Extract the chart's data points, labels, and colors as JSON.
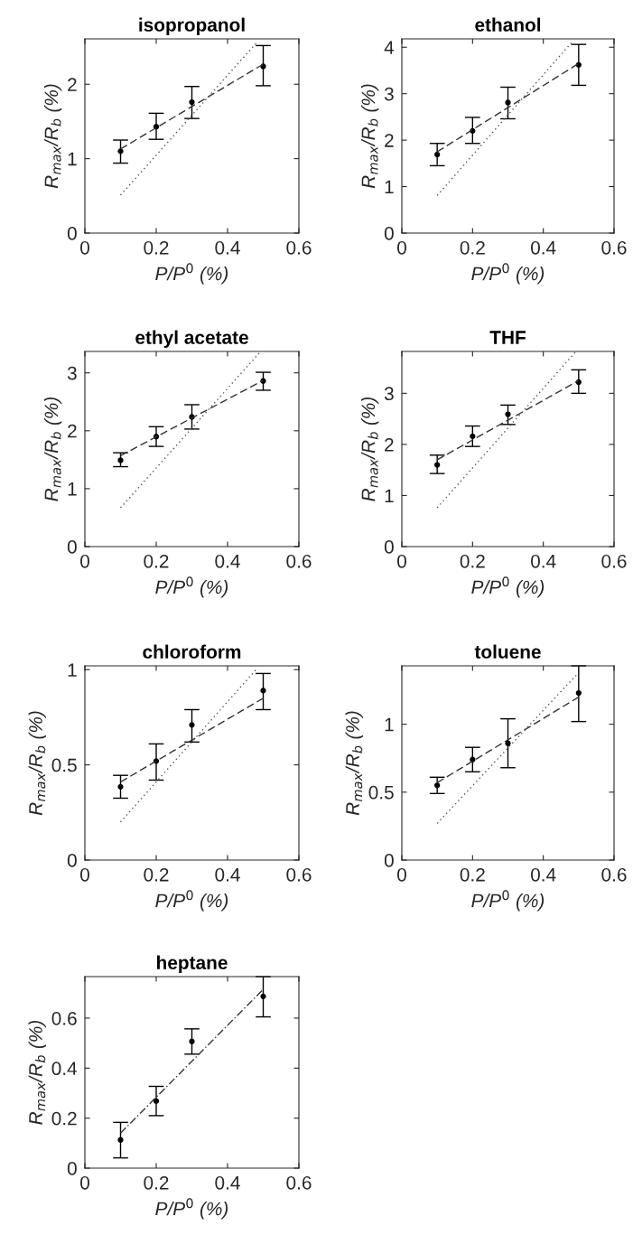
{
  "chart_data": [
    {
      "type": "scatter",
      "title": "isopropanol",
      "xlabel": "P/P$^{0}$ (%)",
      "ylabel": "R$_{max}$/R$_{b}$ (%)",
      "xlim": [
        0,
        0.6
      ],
      "xticks": [
        0,
        0.2,
        0.4,
        0.6
      ],
      "ylim": [
        0,
        2.61
      ],
      "yticks": [
        0,
        1,
        2
      ],
      "grid": false,
      "legend": false,
      "series": [
        {
          "color": "#000000",
          "marker": "circle",
          "x": [
            0.1,
            0.2,
            0.3,
            0.5
          ],
          "values": [
            1.1,
            1.43,
            1.76,
            2.24
          ],
          "errors": [
            [
              0.94,
              1.25
            ],
            [
              1.26,
              1.61
            ],
            [
              1.54,
              1.97
            ],
            [
              1.98,
              2.52
            ]
          ]
        },
        {
          "type": "line",
          "color": "#333333",
          "line_style": "dashed",
          "x": [
            0.1,
            0.5
          ],
          "values": [
            1.13,
            2.27
          ]
        },
        {
          "type": "line",
          "color": "#555555",
          "line_style": "dotted",
          "x": [
            0.1,
            0.48
          ],
          "values": [
            0.51,
            2.55
          ]
        }
      ]
    },
    {
      "type": "scatter",
      "title": "ethanol",
      "xlabel": "P/P$^{0}$ (%)",
      "ylabel": "R$_{max}$/R$_{b}$ (%)",
      "xlim": [
        0,
        0.6
      ],
      "xticks": [
        0,
        0.2,
        0.4,
        0.6
      ],
      "ylim": [
        0,
        4.18
      ],
      "yticks": [
        0,
        1,
        2,
        3,
        4
      ],
      "grid": false,
      "legend": false,
      "series": [
        {
          "color": "#000000",
          "marker": "circle",
          "x": [
            0.1,
            0.2,
            0.3,
            0.5
          ],
          "values": [
            1.69,
            2.2,
            2.81,
            3.62
          ],
          "errors": [
            [
              1.45,
              1.93
            ],
            [
              1.93,
              2.49
            ],
            [
              2.46,
              3.14
            ],
            [
              3.18,
              4.06
            ]
          ]
        },
        {
          "type": "line",
          "color": "#333333",
          "line_style": "dashed",
          "x": [
            0.1,
            0.5
          ],
          "values": [
            1.75,
            3.65
          ]
        },
        {
          "type": "line",
          "color": "#555555",
          "line_style": "dotted",
          "x": [
            0.1,
            0.48
          ],
          "values": [
            0.81,
            4.1
          ]
        }
      ]
    },
    {
      "type": "scatter",
      "title": "ethyl acetate",
      "xlabel": "P/P$^{0}$ (%)",
      "ylabel": "R$_{max}$/R$_{b}$ (%)",
      "xlim": [
        0,
        0.6
      ],
      "xticks": [
        0,
        0.2,
        0.4,
        0.6
      ],
      "ylim": [
        0,
        3.37
      ],
      "yticks": [
        0,
        1,
        2,
        3
      ],
      "grid": false,
      "legend": false,
      "series": [
        {
          "color": "#000000",
          "marker": "circle",
          "x": [
            0.1,
            0.2,
            0.3,
            0.5
          ],
          "values": [
            1.49,
            1.9,
            2.24,
            2.86
          ],
          "errors": [
            [
              1.38,
              1.62
            ],
            [
              1.73,
              2.07
            ],
            [
              2.03,
              2.45
            ],
            [
              2.7,
              3.01
            ]
          ]
        },
        {
          "type": "line",
          "color": "#333333",
          "line_style": "dashed",
          "x": [
            0.1,
            0.5
          ],
          "values": [
            1.57,
            2.87
          ]
        },
        {
          "type": "line",
          "color": "#555555",
          "line_style": "dotted",
          "x": [
            0.1,
            0.49
          ],
          "values": [
            0.67,
            3.35
          ]
        }
      ]
    },
    {
      "type": "scatter",
      "title": "THF",
      "xlabel": "P/P$^{0}$ (%)",
      "ylabel": "R$_{max}$/R$_{b}$ (%)",
      "xlim": [
        0,
        0.6
      ],
      "xticks": [
        0,
        0.2,
        0.4,
        0.6
      ],
      "ylim": [
        0,
        3.82
      ],
      "yticks": [
        0,
        1,
        2,
        3
      ],
      "grid": false,
      "legend": false,
      "series": [
        {
          "color": "#000000",
          "marker": "circle",
          "x": [
            0.1,
            0.2,
            0.3,
            0.5
          ],
          "values": [
            1.6,
            2.16,
            2.59,
            3.22
          ],
          "errors": [
            [
              1.43,
              1.79
            ],
            [
              1.96,
              2.36
            ],
            [
              2.39,
              2.77
            ],
            [
              3.0,
              3.46
            ]
          ]
        },
        {
          "type": "line",
          "color": "#333333",
          "line_style": "dashed",
          "x": [
            0.1,
            0.5
          ],
          "values": [
            1.7,
            3.25
          ]
        },
        {
          "type": "line",
          "color": "#555555",
          "line_style": "dotted",
          "x": [
            0.1,
            0.49
          ],
          "values": [
            0.76,
            3.8
          ]
        }
      ]
    },
    {
      "type": "scatter",
      "title": "chloroform",
      "xlabel": "P/P$^{0}$ (%)",
      "ylabel": "R$_{max}$/R$_{b}$ (%)",
      "xlim": [
        0,
        0.6
      ],
      "xticks": [
        0,
        0.2,
        0.4,
        0.6
      ],
      "ylim": [
        0,
        1.02
      ],
      "yticks": [
        0,
        0.5,
        1
      ],
      "grid": false,
      "legend": false,
      "series": [
        {
          "color": "#000000",
          "marker": "circle",
          "x": [
            0.1,
            0.2,
            0.3,
            0.5
          ],
          "values": [
            0.385,
            0.52,
            0.71,
            0.89
          ],
          "errors": [
            [
              0.325,
              0.445
            ],
            [
              0.42,
              0.61
            ],
            [
              0.62,
              0.79
            ],
            [
              0.79,
              0.98
            ]
          ]
        },
        {
          "type": "line",
          "color": "#333333",
          "line_style": "dashed",
          "x": [
            0.1,
            0.5
          ],
          "values": [
            0.41,
            0.85
          ]
        },
        {
          "type": "line",
          "color": "#555555",
          "line_style": "dotted",
          "x": [
            0.1,
            0.48
          ],
          "values": [
            0.2,
            1.0
          ]
        }
      ]
    },
    {
      "type": "scatter",
      "title": "toluene",
      "xlabel": "P/P$^{0}$ (%)",
      "ylabel": "R$_{max}$/R$_{b}$ (%)",
      "xlim": [
        0,
        0.6
      ],
      "xticks": [
        0,
        0.2,
        0.4,
        0.6
      ],
      "ylim": [
        0,
        1.43
      ],
      "yticks": [
        0,
        0.5,
        1
      ],
      "grid": false,
      "legend": false,
      "series": [
        {
          "color": "#000000",
          "marker": "circle",
          "x": [
            0.1,
            0.2,
            0.3,
            0.5
          ],
          "values": [
            0.55,
            0.74,
            0.86,
            1.23
          ],
          "errors": [
            [
              0.49,
              0.61
            ],
            [
              0.65,
              0.83
            ],
            [
              0.68,
              1.04
            ],
            [
              1.02,
              1.43
            ]
          ]
        },
        {
          "type": "line",
          "color": "#333333",
          "line_style": "dashed",
          "x": [
            0.1,
            0.5
          ],
          "values": [
            0.57,
            1.2
          ]
        },
        {
          "type": "line",
          "color": "#555555",
          "line_style": "dotted",
          "x": [
            0.1,
            0.5
          ],
          "values": [
            0.27,
            1.38
          ]
        }
      ]
    },
    {
      "type": "scatter",
      "title": "heptane",
      "xlabel": "P/P$^{0}$ (%)",
      "ylabel": "R$_{max}$/R$_{b}$ (%)",
      "xlim": [
        0,
        0.6
      ],
      "xticks": [
        0,
        0.2,
        0.4,
        0.6
      ],
      "ylim": [
        0,
        0.766
      ],
      "yticks": [
        0,
        0.2,
        0.4,
        0.6
      ],
      "grid": false,
      "legend": false,
      "series": [
        {
          "color": "#000000",
          "marker": "circle",
          "x": [
            0.1,
            0.2,
            0.3,
            0.5
          ],
          "values": [
            0.113,
            0.268,
            0.507,
            0.687
          ],
          "errors": [
            [
              0.041,
              0.183
            ],
            [
              0.21,
              0.327
            ],
            [
              0.456,
              0.557
            ],
            [
              0.605,
              0.766
            ]
          ]
        },
        {
          "type": "line",
          "color": "#333333",
          "line_style": "dashdot",
          "x": [
            0.1,
            0.5
          ],
          "values": [
            0.14,
            0.715
          ]
        }
      ]
    }
  ]
}
